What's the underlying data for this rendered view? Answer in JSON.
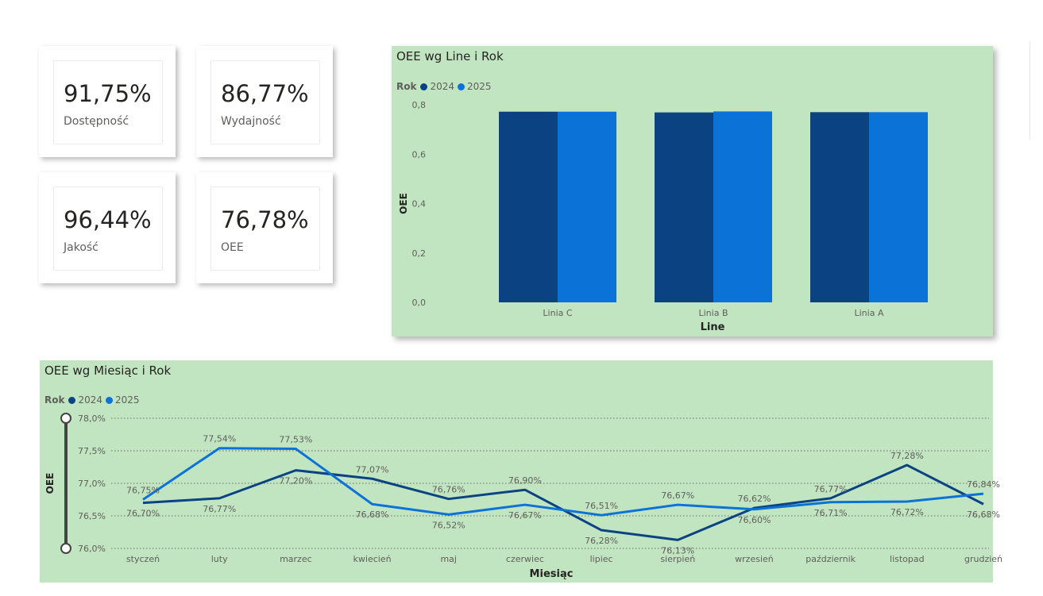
{
  "kpis": [
    {
      "value": "91,75%",
      "label": "Dostępność"
    },
    {
      "value": "86,77%",
      "label": "Wydajność"
    },
    {
      "value": "96,44%",
      "label": "Jakość"
    },
    {
      "value": "76,78%",
      "label": "OEE"
    }
  ],
  "colors": {
    "series_2024": "#0b4382",
    "series_2025": "#0b72d8",
    "panel_bg": "#c1e5c0"
  },
  "chart_data": [
    {
      "type": "bar",
      "title": "OEE wg Line i Rok",
      "xlabel": "Line",
      "ylabel": "OEE",
      "legend_title": "Rok",
      "legend_position": "top-left",
      "categories": [
        "Linia C",
        "Linia B",
        "Linia A"
      ],
      "series": [
        {
          "name": "2024",
          "values": [
            0.772,
            0.769,
            0.77
          ]
        },
        {
          "name": "2025",
          "values": [
            0.772,
            0.773,
            0.77
          ]
        }
      ],
      "ylim": [
        0,
        0.8
      ],
      "yticks": [
        "0,0",
        "0,2",
        "0,4",
        "0,6",
        "0,8"
      ],
      "grid": false
    },
    {
      "type": "line",
      "title": "OEE wg Miesiąc i Rok",
      "xlabel": "Miesiąc",
      "ylabel": "OEE",
      "legend_title": "Rok",
      "legend_position": "top-left",
      "categories": [
        "styczeń",
        "luty",
        "marzec",
        "kwiecień",
        "maj",
        "czerwiec",
        "lipiec",
        "sierpień",
        "wrzesień",
        "październik",
        "listopad",
        "grudzień"
      ],
      "series": [
        {
          "name": "2024",
          "values": [
            76.7,
            76.77,
            77.2,
            77.07,
            76.76,
            76.9,
            76.28,
            76.13,
            76.62,
            76.77,
            77.28,
            76.68
          ],
          "labels": [
            "76,70%",
            "76,77%",
            "77,20%",
            "77,07%",
            "76,76%",
            "76,90%",
            "76,28%",
            "76,13%",
            "76,62%",
            "76,77%",
            "77,28%",
            "76,68%"
          ]
        },
        {
          "name": "2025",
          "values": [
            76.75,
            77.54,
            77.53,
            76.68,
            76.52,
            76.67,
            76.51,
            76.67,
            76.6,
            76.71,
            76.72,
            76.84
          ],
          "labels": [
            "76,75%",
            "77,54%",
            "77,53%",
            "76,68%",
            "76,52%",
            "76,67%",
            "76,51%",
            "76,67%",
            "76,60%",
            "76,71%",
            "76,72%",
            "76,84%"
          ]
        }
      ],
      "ylim": [
        76.0,
        78.0
      ],
      "yticks": [
        "76,0%",
        "76,5%",
        "77,0%",
        "77,5%",
        "78,0%"
      ],
      "grid": true
    }
  ]
}
